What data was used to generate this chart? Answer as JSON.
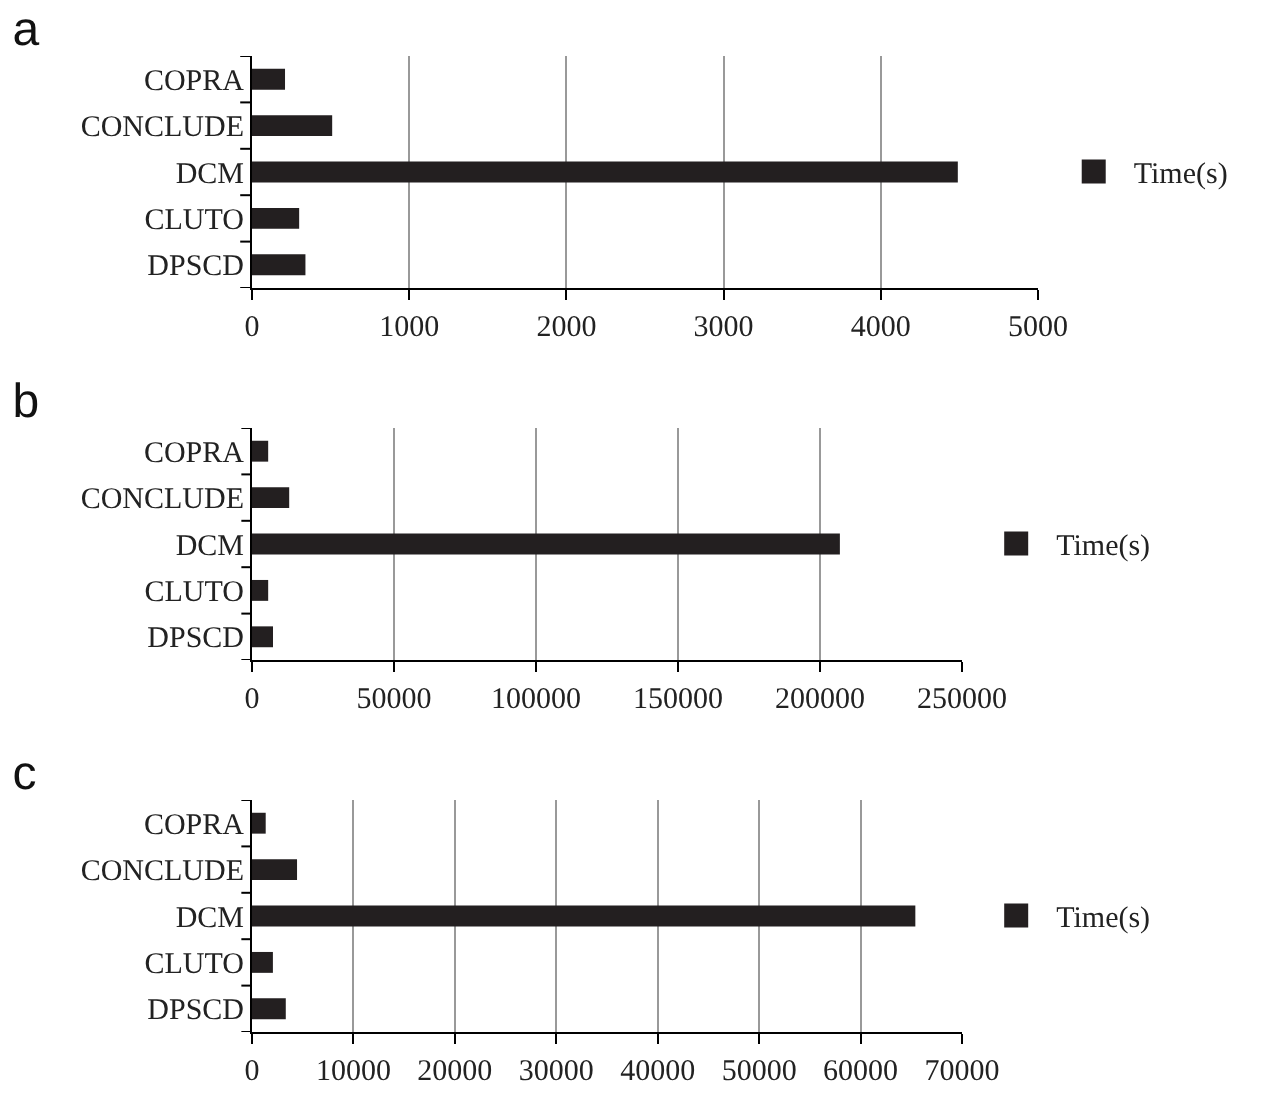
{
  "chart_data": [
    {
      "type": "bar",
      "title": "a",
      "orientation": "horizontal",
      "categories": [
        "COPRA",
        "CONCLUDE",
        "DCM",
        "CLUTO",
        "DPSCD"
      ],
      "series": [
        {
          "name": "Time(s)",
          "color": "#231f20",
          "values": [
            210,
            510,
            4490,
            300,
            340
          ]
        }
      ],
      "xlim": [
        0,
        5000
      ],
      "xticks": [
        0,
        1000,
        2000,
        3000,
        4000,
        5000
      ],
      "grid": "x",
      "legend": "right"
    },
    {
      "type": "bar",
      "title": "b",
      "orientation": "horizontal",
      "categories": [
        "COPRA",
        "CONCLUDE",
        "DCM",
        "CLUTO",
        "DPSCD"
      ],
      "series": [
        {
          "name": "Time(s)",
          "color": "#231f20",
          "values": [
            5700,
            13100,
            207000,
            5700,
            7400
          ]
        }
      ],
      "xlim": [
        0,
        250000
      ],
      "xticks": [
        0,
        50000,
        100000,
        150000,
        200000,
        250000
      ],
      "grid": "x",
      "legend": "right"
    },
    {
      "type": "bar",
      "title": "c",
      "orientation": "horizontal",
      "categories": [
        "COPRA",
        "CONCLUDE",
        "DCM",
        "CLUTO",
        "DPSCD"
      ],
      "series": [
        {
          "name": "Time(s)",
          "color": "#231f20",
          "values": [
            1350,
            4440,
            65400,
            2060,
            3330
          ]
        }
      ],
      "xlim": [
        0,
        70000
      ],
      "xticks": [
        0,
        10000,
        20000,
        30000,
        40000,
        50000,
        60000,
        70000
      ],
      "grid": "x",
      "legend": "right"
    }
  ]
}
